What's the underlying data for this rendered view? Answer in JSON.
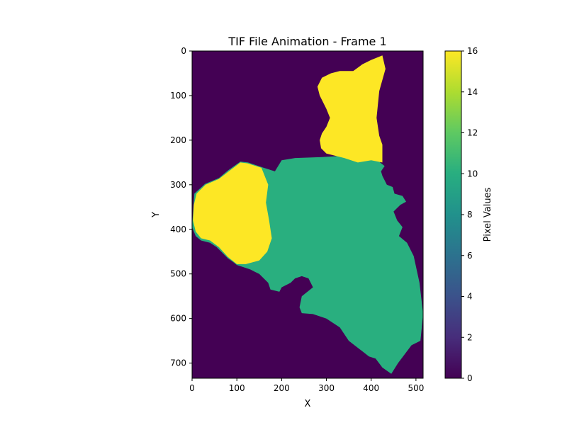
{
  "chart_data": {
    "type": "heatmap",
    "title": "TIF File Animation - Frame 1",
    "xlabel": "X",
    "ylabel": "Y",
    "xlim": [
      0,
      516
    ],
    "ylim": [
      734,
      0
    ],
    "x_ticks": [
      0,
      100,
      200,
      300,
      400,
      500
    ],
    "y_ticks": [
      0,
      100,
      200,
      300,
      400,
      500,
      600,
      700
    ],
    "colorbar": {
      "label": "Pixel Values",
      "range": [
        0,
        16
      ],
      "ticks": [
        0,
        2,
        4,
        6,
        8,
        10,
        12,
        14,
        16
      ],
      "colormap": "viridis"
    },
    "colors": {
      "background_value_0": "#440154",
      "value_10": "#29af7f",
      "value_16": "#fde725"
    },
    "regions": [
      {
        "value": 10,
        "outline": [
          [
            29,
            298
          ],
          [
            60,
            285
          ],
          [
            80,
            268
          ],
          [
            108,
            248
          ],
          [
            125,
            250
          ],
          [
            160,
            262
          ],
          [
            185,
            270
          ],
          [
            200,
            245
          ],
          [
            230,
            240
          ],
          [
            290,
            238
          ],
          [
            340,
            235
          ],
          [
            380,
            228
          ],
          [
            425,
            222
          ],
          [
            420,
            250
          ],
          [
            430,
            258
          ],
          [
            422,
            270
          ],
          [
            425,
            280
          ],
          [
            435,
            300
          ],
          [
            448,
            305
          ],
          [
            452,
            320
          ],
          [
            470,
            325
          ],
          [
            478,
            338
          ],
          [
            465,
            345
          ],
          [
            450,
            360
          ],
          [
            458,
            380
          ],
          [
            470,
            395
          ],
          [
            462,
            415
          ],
          [
            480,
            430
          ],
          [
            495,
            460
          ],
          [
            508,
            520
          ],
          [
            516,
            590
          ],
          [
            510,
            650
          ],
          [
            490,
            660
          ],
          [
            475,
            680
          ],
          [
            460,
            700
          ],
          [
            445,
            724
          ],
          [
            425,
            710
          ],
          [
            410,
            690
          ],
          [
            395,
            685
          ],
          [
            350,
            650
          ],
          [
            330,
            620
          ],
          [
            300,
            600
          ],
          [
            270,
            590
          ],
          [
            245,
            588
          ],
          [
            240,
            575
          ],
          [
            245,
            550
          ],
          [
            270,
            530
          ],
          [
            260,
            510
          ],
          [
            245,
            505
          ],
          [
            230,
            510
          ],
          [
            220,
            520
          ],
          [
            200,
            530
          ],
          [
            195,
            540
          ],
          [
            175,
            535
          ],
          [
            170,
            520
          ],
          [
            160,
            510
          ],
          [
            150,
            500
          ],
          [
            140,
            495
          ],
          [
            130,
            490
          ],
          [
            115,
            485
          ],
          [
            100,
            480
          ],
          [
            90,
            472
          ],
          [
            80,
            465
          ],
          [
            70,
            455
          ],
          [
            55,
            440
          ],
          [
            40,
            430
          ],
          [
            20,
            425
          ],
          [
            8,
            415
          ],
          [
            0,
            395
          ],
          [
            3,
            350
          ],
          [
            5,
            320
          ]
        ]
      },
      {
        "value": 16,
        "outline": [
          [
            425,
            10
          ],
          [
            432,
            40
          ],
          [
            418,
            90
          ],
          [
            412,
            150
          ],
          [
            418,
            190
          ],
          [
            425,
            210
          ],
          [
            425,
            250
          ],
          [
            400,
            245
          ],
          [
            370,
            250
          ],
          [
            340,
            240
          ],
          [
            300,
            230
          ],
          [
            288,
            218
          ],
          [
            285,
            200
          ],
          [
            290,
            185
          ],
          [
            300,
            170
          ],
          [
            308,
            150
          ],
          [
            300,
            130
          ],
          [
            285,
            100
          ],
          [
            280,
            80
          ],
          [
            290,
            60
          ],
          [
            310,
            50
          ],
          [
            330,
            45
          ],
          [
            360,
            45
          ],
          [
            380,
            30
          ],
          [
            400,
            20
          ]
        ]
      },
      {
        "value": 16,
        "outline": [
          [
            30,
            300
          ],
          [
            60,
            287
          ],
          [
            82,
            270
          ],
          [
            108,
            250
          ],
          [
            124,
            252
          ],
          [
            155,
            262
          ],
          [
            170,
            300
          ],
          [
            165,
            340
          ],
          [
            172,
            380
          ],
          [
            178,
            420
          ],
          [
            168,
            450
          ],
          [
            150,
            470
          ],
          [
            120,
            478
          ],
          [
            100,
            478
          ],
          [
            80,
            462
          ],
          [
            60,
            440
          ],
          [
            40,
            425
          ],
          [
            20,
            420
          ],
          [
            8,
            405
          ],
          [
            2,
            380
          ],
          [
            4,
            345
          ],
          [
            10,
            320
          ]
        ]
      }
    ]
  }
}
